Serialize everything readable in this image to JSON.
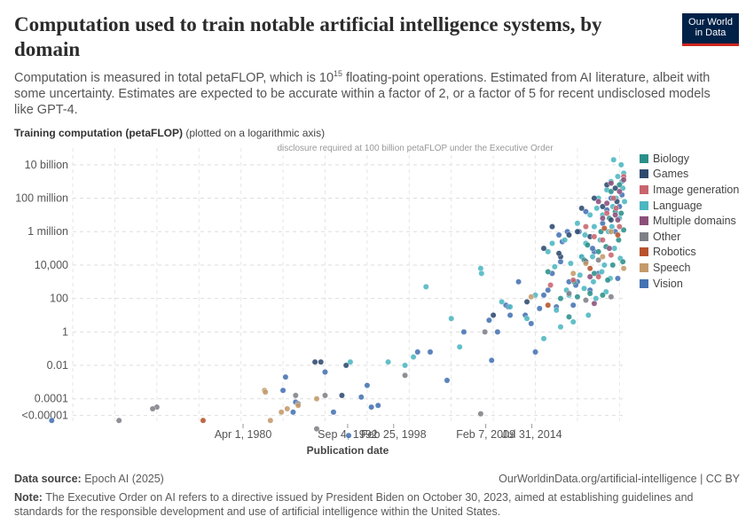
{
  "header": {
    "title": "Computation used to train notable artificial intelligence systems, by domain",
    "subtitle_pre": "Computation is measured in total petaFLOP, which is 10",
    "subtitle_sup": "15",
    "subtitle_post": " floating-point operations. Estimated from AI literature, albeit with some uncertainty. Estimates are expected to be accurate within a factor of 2, or a factor of 5 for recent undisclosed models like GPT-4.",
    "logo_line1": "Our World",
    "logo_line2": "in Data"
  },
  "axis": {
    "y_title_bold": "Training computation (petaFLOP)",
    "y_title_rest": " (plotted on a logarithmic axis)"
  },
  "footer": {
    "source_label": "Data source:",
    "source_text": " Epoch AI (2025)",
    "url_text": "OurWorldinData.org/artificial-intelligence | CC BY",
    "note_label": "Note:",
    "note_text": " The Executive Order on AI refers to a directive issued by President Biden on October 30, 2023, aimed at establishing guidelines and standards for the responsible development and use of artificial intelligence within the United States."
  },
  "colors": {
    "Biology": "#2a8f8a",
    "Games": "#2d4a6e",
    "Image generation": "#c9646e",
    "Language": "#4cb6c1",
    "Multiple domains": "#8c4f7a",
    "Other": "#7f7f88",
    "Robotics": "#b8522e",
    "Speech": "#c49a6a",
    "Vision": "#4472b3"
  },
  "chart_data": {
    "type": "scatter",
    "title": "Computation used to train notable artificial intelligence systems, by domain",
    "xlabel": "Publication date",
    "ylabel": "Training computation (petaFLOP)",
    "yscale": "log",
    "xlim": [
      1960.0,
      2025.7
    ],
    "ylim_log10": [
      -5.5,
      11.0
    ],
    "yticks": [
      {
        "log": 10,
        "label": "10 billion"
      },
      {
        "log": 8,
        "label": "100 million"
      },
      {
        "log": 6,
        "label": "1 million"
      },
      {
        "log": 4,
        "label": "10,000"
      },
      {
        "log": 2,
        "label": "100"
      },
      {
        "log": 0,
        "label": "1"
      },
      {
        "log": -2,
        "label": "0.01"
      },
      {
        "log": -4,
        "label": "0.0001"
      },
      {
        "log": -5,
        "label": "<0.00001"
      }
    ],
    "xticks": [
      {
        "year": 1980.25,
        "label": "Apr 1, 1980"
      },
      {
        "year": 1992.68,
        "label": "Sep 4, 1992"
      },
      {
        "year": 1998.15,
        "label": "Feb 25, 1998"
      },
      {
        "year": 2009.1,
        "label": "Feb 7, 2009"
      },
      {
        "year": 2014.58,
        "label": "Jul 31, 2014"
      }
    ],
    "threshold": {
      "log": 11,
      "label": "disclosure required at 100 billion petaFLOP under the Executive Order"
    },
    "legend": [
      "Biology",
      "Games",
      "Image generation",
      "Language",
      "Multiple domains",
      "Other",
      "Robotics",
      "Speech",
      "Vision"
    ],
    "series": [
      {
        "name": "Vision",
        "points": [
          [
            1957.5,
            -5.3
          ],
          [
            1985.0,
            -3.5
          ],
          [
            1985.3,
            -2.7
          ],
          [
            1986.5,
            -4.2
          ],
          [
            1986.2,
            -4.8
          ],
          [
            1990.0,
            -2.4
          ],
          [
            1991.0,
            -4.8
          ],
          [
            1992.8,
            -6.2
          ],
          [
            1994.3,
            -3.9
          ],
          [
            1995.0,
            -3.2
          ],
          [
            1995.5,
            -4.5
          ],
          [
            1996.3,
            -4.4
          ],
          [
            2001.0,
            -1.2
          ],
          [
            2002.5,
            -1.2
          ],
          [
            2004.5,
            -2.9
          ],
          [
            2006.5,
            0.0
          ],
          [
            2009.5,
            0.7
          ],
          [
            2009.8,
            -1.7
          ],
          [
            2010.5,
            0.0
          ],
          [
            2011.5,
            1.6
          ],
          [
            2011.8,
            1.5
          ],
          [
            2013.0,
            3.0
          ],
          [
            2014.5,
            0.5
          ],
          [
            2015.0,
            -1.2
          ],
          [
            2015.5,
            1.4
          ],
          [
            2016.0,
            2.2
          ],
          [
            2017.0,
            3.5
          ],
          [
            2017.5,
            1.5
          ],
          [
            2018.0,
            4.2
          ],
          [
            2018.2,
            5.4
          ],
          [
            2019.0,
            3.0
          ],
          [
            2019.5,
            1.6
          ],
          [
            2020.0,
            3.0
          ],
          [
            2020.5,
            4.5
          ],
          [
            2021.0,
            7.2
          ],
          [
            2021.5,
            2.5
          ],
          [
            2022.0,
            4.8
          ],
          [
            2022.5,
            3.5
          ],
          [
            2023.0,
            6.5
          ],
          [
            2023.5,
            7.3
          ],
          [
            2024.0,
            8.0
          ],
          [
            2024.5,
            6.0
          ],
          [
            2025.0,
            7.5
          ],
          [
            2025.3,
            8.2
          ],
          [
            2024.8,
            3.2
          ],
          [
            2019.8,
            2.8
          ],
          [
            2018.8,
            6.0
          ],
          [
            2016.5,
            2.5
          ],
          [
            2013.8,
            1.0
          ],
          [
            2012.0,
            1.0
          ],
          [
            2020.2,
            6.0
          ],
          [
            2017.8,
            5.8
          ],
          [
            2021.8,
            5.0
          ]
        ]
      },
      {
        "name": "Language",
        "points": [
          [
            1993.0,
            -1.8
          ],
          [
            1997.5,
            -1.8
          ],
          [
            1999.5,
            -2.0
          ],
          [
            2000.5,
            -1.5
          ],
          [
            2002.0,
            2.7
          ],
          [
            2005.0,
            0.8
          ],
          [
            2006.0,
            -0.9
          ],
          [
            2008.5,
            3.8
          ],
          [
            2008.6,
            3.5
          ],
          [
            2011.0,
            1.8
          ],
          [
            2012.0,
            1.5
          ],
          [
            2014.0,
            0.8
          ],
          [
            2015.0,
            2.2
          ],
          [
            2016.0,
            -0.4
          ],
          [
            2016.5,
            4.8
          ],
          [
            2017.0,
            5.3
          ],
          [
            2017.5,
            1.3
          ],
          [
            2018.0,
            0.3
          ],
          [
            2018.5,
            5.5
          ],
          [
            2019.0,
            2.2
          ],
          [
            2019.5,
            0.6
          ],
          [
            2020.0,
            6.5
          ],
          [
            2020.5,
            4.5
          ],
          [
            2020.8,
            2.6
          ],
          [
            2021.0,
            5.3
          ],
          [
            2021.3,
            1.0
          ],
          [
            2021.5,
            7.0
          ],
          [
            2021.8,
            4.5
          ],
          [
            2022.0,
            6.3
          ],
          [
            2022.2,
            2.0
          ],
          [
            2022.5,
            8.0
          ],
          [
            2022.7,
            5.5
          ],
          [
            2023.0,
            7.0
          ],
          [
            2023.2,
            4.0
          ],
          [
            2023.5,
            8.5
          ],
          [
            2023.7,
            6.0
          ],
          [
            2024.0,
            9.0
          ],
          [
            2024.2,
            7.5
          ],
          [
            2024.4,
            5.0
          ],
          [
            2024.6,
            8.0
          ],
          [
            2024.8,
            9.3
          ],
          [
            2025.0,
            6.8
          ],
          [
            2025.2,
            10.0
          ],
          [
            2025.4,
            8.6
          ],
          [
            2025.5,
            9.5
          ],
          [
            2025.6,
            7.8
          ],
          [
            2023.9,
            3.2
          ],
          [
            2022.9,
            3.6
          ],
          [
            2021.9,
            3.0
          ],
          [
            2020.9,
            5.8
          ],
          [
            2024.3,
            10.3
          ],
          [
            2025.1,
            4.4
          ],
          [
            2019.2,
            4.1
          ],
          [
            2018.7,
            2.5
          ],
          [
            2023.4,
            2.4
          ],
          [
            2022.3,
            7.4
          ],
          [
            2024.1,
            6.3
          ],
          [
            2020.3,
            3.4
          ],
          [
            2017.3,
            3.9
          ],
          [
            2025.3,
            9.0
          ]
        ]
      },
      {
        "name": "Biology",
        "points": [
          [
            2016.5,
            3.6
          ],
          [
            2018.0,
            2.0
          ],
          [
            2019.0,
            0.9
          ],
          [
            2020.0,
            2.1
          ],
          [
            2020.8,
            4.3
          ],
          [
            2021.5,
            2.3
          ],
          [
            2022.0,
            3.5
          ],
          [
            2022.5,
            4.8
          ],
          [
            2023.0,
            2.2
          ],
          [
            2023.4,
            5.1
          ],
          [
            2023.8,
            6.8
          ],
          [
            2024.2,
            4.0
          ],
          [
            2024.5,
            7.2
          ],
          [
            2024.9,
            5.5
          ],
          [
            2025.2,
            7.1
          ],
          [
            2025.5,
            6.1
          ],
          [
            2022.8,
            6.0
          ],
          [
            2021.2,
            5.2
          ],
          [
            2019.6,
            3.0
          ],
          [
            2024.0,
            8.4
          ],
          [
            2025.0,
            8.8
          ],
          [
            2023.6,
            3.1
          ],
          [
            2025.4,
            4.2
          ]
        ]
      },
      {
        "name": "Games",
        "points": [
          [
            1988.8,
            -1.8
          ],
          [
            1989.5,
            -1.8
          ],
          [
            1992.0,
            -3.8
          ],
          [
            1992.5,
            -2.0
          ],
          [
            2010.0,
            1.0
          ],
          [
            2014.0,
            1.8
          ],
          [
            2016.0,
            5.0
          ],
          [
            2017.0,
            6.3
          ],
          [
            2018.0,
            4.5
          ],
          [
            2019.0,
            5.8
          ],
          [
            2020.0,
            6.0
          ],
          [
            2020.5,
            7.4
          ],
          [
            2021.5,
            5.7
          ],
          [
            2022.0,
            8.0
          ],
          [
            2023.0,
            7.5
          ],
          [
            2024.0,
            6.7
          ],
          [
            2024.5,
            8.6
          ],
          [
            2021.0,
            4.2
          ],
          [
            2017.8,
            4.7
          ],
          [
            2023.5,
            8.8
          ],
          [
            2024.7,
            7.8
          ]
        ]
      },
      {
        "name": "Image generation",
        "points": [
          [
            2016.8,
            2.8
          ],
          [
            2019.5,
            3.1
          ],
          [
            2021.0,
            6.3
          ],
          [
            2022.0,
            5.7
          ],
          [
            2023.0,
            5.5
          ],
          [
            2023.5,
            7.1
          ],
          [
            2024.0,
            4.6
          ],
          [
            2024.6,
            7.4
          ],
          [
            2025.0,
            6.3
          ],
          [
            2025.5,
            9.3
          ],
          [
            2022.5,
            3.3
          ],
          [
            2024.3,
            8.0
          ]
        ]
      },
      {
        "name": "Multiple domains",
        "points": [
          [
            2021.5,
            3.3
          ],
          [
            2022.5,
            7.8
          ],
          [
            2023.0,
            6.8
          ],
          [
            2023.5,
            7.7
          ],
          [
            2024.0,
            8.9
          ],
          [
            2024.5,
            7.0
          ],
          [
            2025.0,
            8.4
          ],
          [
            2025.5,
            9.1
          ],
          [
            2024.8,
            6.7
          ],
          [
            2023.8,
            5.0
          ],
          [
            2022.0,
            1.7
          ]
        ]
      },
      {
        "name": "Other",
        "points": [
          [
            1965.5,
            -5.3
          ],
          [
            1970.0,
            -4.5
          ],
          [
            1969.5,
            -4.6
          ],
          [
            1986.5,
            -3.8
          ],
          [
            1986.8,
            -4.3
          ],
          [
            1989.0,
            -5.8
          ],
          [
            1990.0,
            -3.8
          ],
          [
            1999.5,
            -2.6
          ],
          [
            2008.5,
            -4.9
          ],
          [
            2009.0,
            0.0
          ],
          [
            2019.0,
            2.3
          ],
          [
            2021.0,
            1.9
          ],
          [
            2024.0,
            2.1
          ],
          [
            2022.5,
            4.3
          ]
        ]
      },
      {
        "name": "Robotics",
        "points": [
          [
            1975.5,
            -5.3
          ],
          [
            2016.5,
            1.6
          ],
          [
            2021.5,
            3.8
          ],
          [
            2023.2,
            6.2
          ],
          [
            2024.8,
            5.8
          ]
        ]
      },
      {
        "name": "Speech",
        "points": [
          [
            1982.8,
            -3.5
          ],
          [
            1982.9,
            -3.6
          ],
          [
            1983.5,
            -5.3
          ],
          [
            1984.8,
            -4.8
          ],
          [
            1985.5,
            -4.6
          ],
          [
            1986.8,
            -4.4
          ],
          [
            1989.0,
            -4.0
          ],
          [
            2014.5,
            2.1
          ],
          [
            2019.5,
            3.5
          ],
          [
            2021.0,
            4.1
          ],
          [
            2023.0,
            4.5
          ],
          [
            2025.5,
            3.8
          ],
          [
            2024.0,
            6.0
          ]
        ]
      }
    ]
  }
}
